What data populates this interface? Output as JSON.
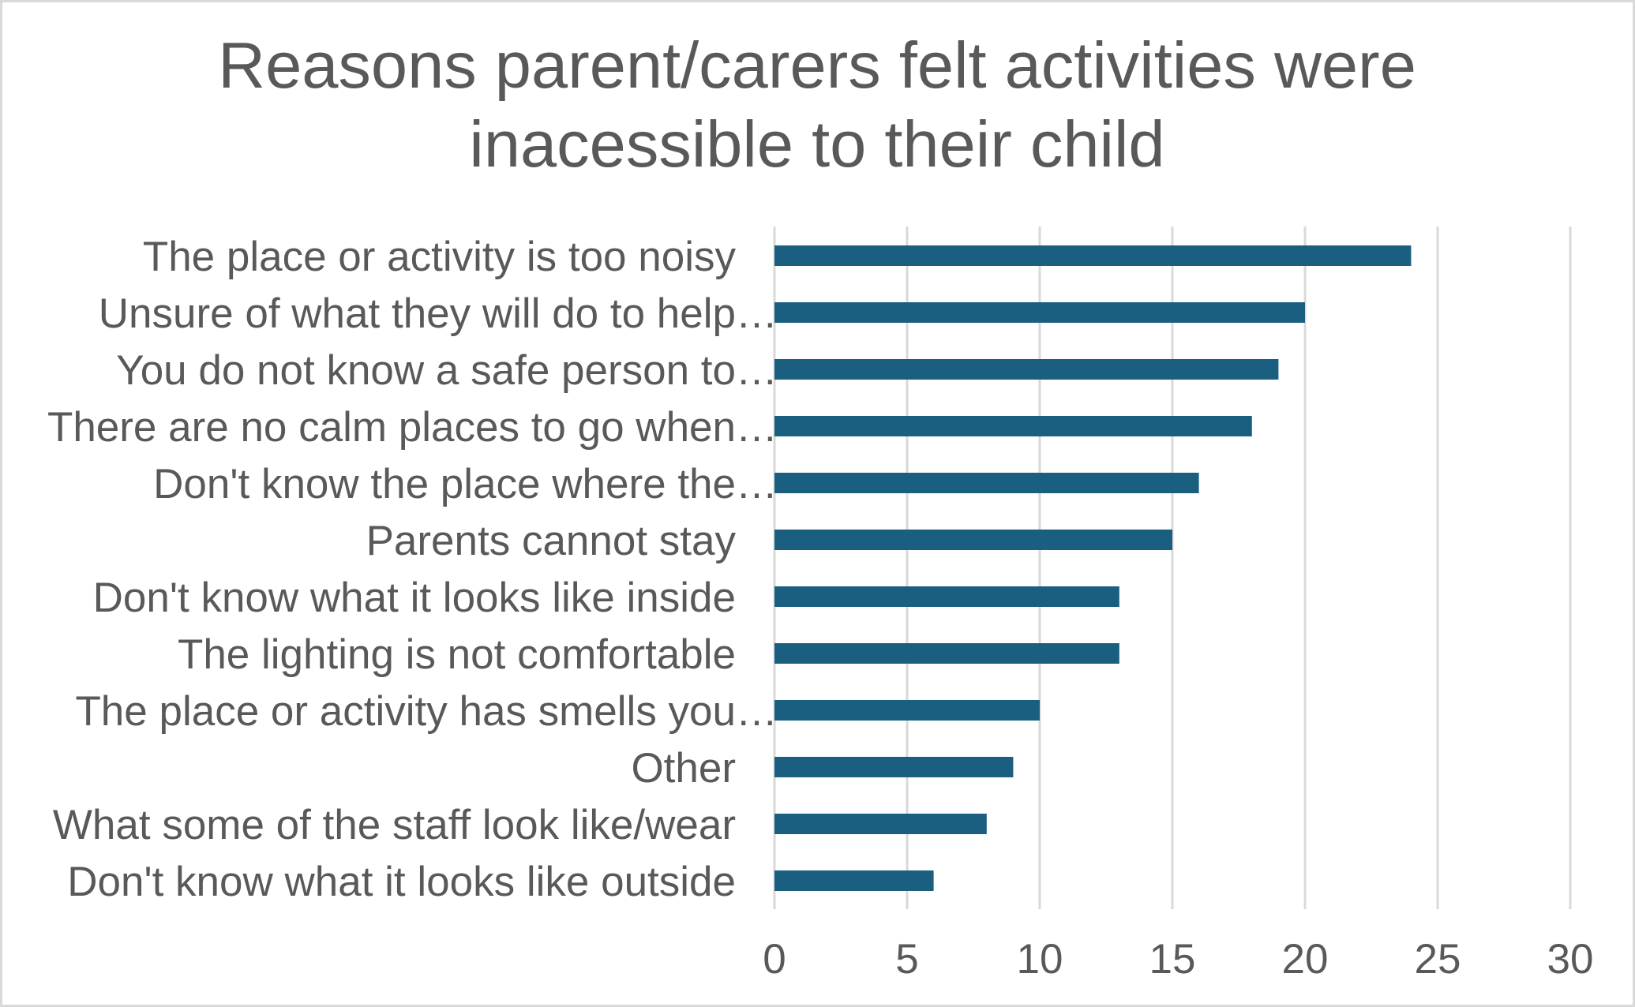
{
  "chart_data": {
    "type": "bar",
    "orientation": "horizontal",
    "title_lines": [
      "Reasons parent/carers felt activities were",
      "inacessible to their child"
    ],
    "categories": [
      "The place  or activity is  too noisy",
      "Unsure of what they will do to help…",
      "You do not know a safe person to…",
      "There are no calm places to go when…",
      "Don't know the place where the…",
      "Parents cannot stay",
      "Don't know what it looks like inside",
      "The lighting is not comfortable",
      "The place or activity has smells you…",
      "Other",
      "What some of the staff look like/wear",
      "Don't know what it looks like outside"
    ],
    "values": [
      24,
      20,
      19,
      18,
      16,
      15,
      13,
      13,
      10,
      9,
      8,
      6
    ],
    "xlim": [
      0,
      30
    ],
    "x_ticks": [
      "0",
      "5",
      "10",
      "15",
      "20",
      "25",
      "30"
    ],
    "grid": true,
    "legend": "none",
    "bar_color": "#1a5f80",
    "grid_color": "#d9d9d9",
    "text_color": "#595959"
  }
}
